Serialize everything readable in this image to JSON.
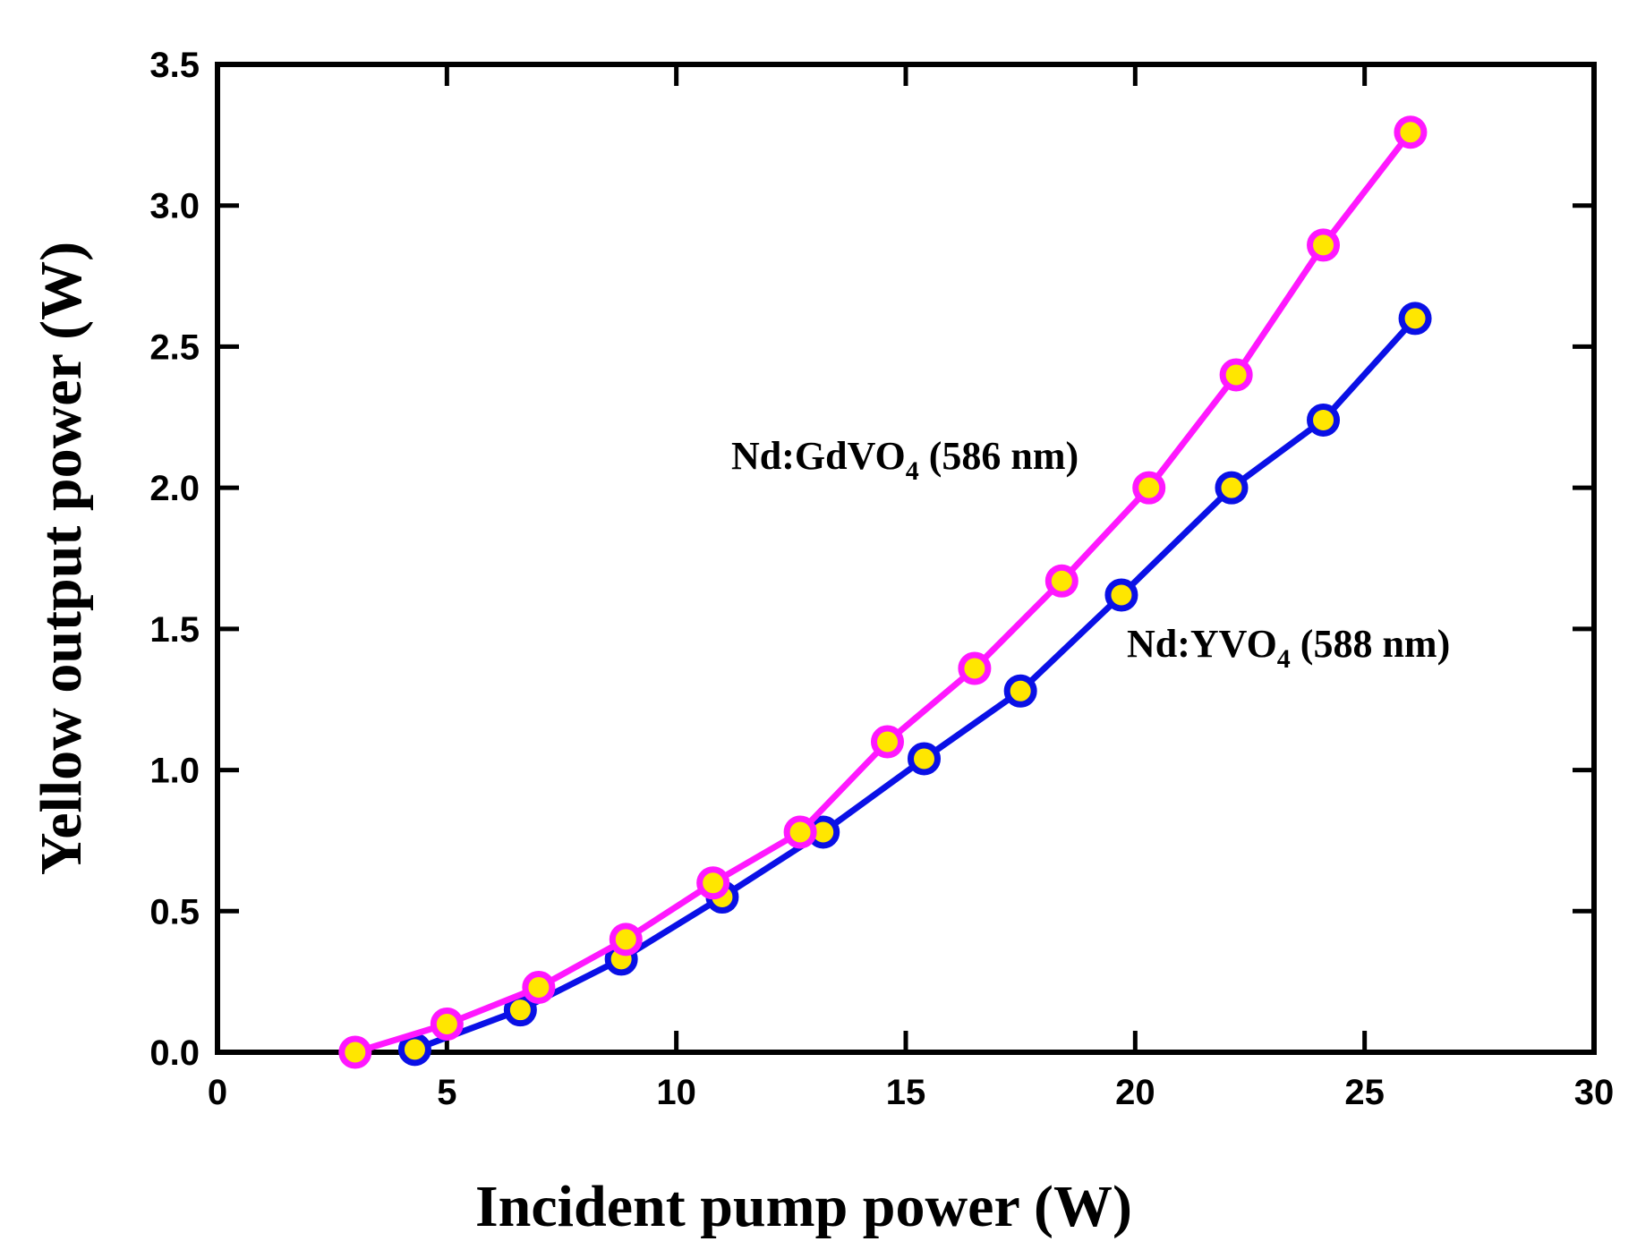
{
  "chart_data": {
    "type": "line",
    "xlabel": "Incident pump power (W)",
    "ylabel": "Yellow output power (W)",
    "xlim": [
      0,
      30
    ],
    "ylim": [
      0,
      3.5
    ],
    "x_ticks": [
      "0",
      "5",
      "10",
      "15",
      "20",
      "25",
      "30"
    ],
    "y_ticks": [
      "0.0",
      "0.5",
      "1.0",
      "1.5",
      "2.0",
      "2.5",
      "3.0",
      "3.5"
    ],
    "marker_fill": "#ffe600",
    "series": [
      {
        "name": "Nd:YVO4 (588 nm)",
        "label_main": "Nd:YVO",
        "label_sub": "4",
        "label_tail": " (588 nm)",
        "color": "#0a10e6",
        "x": [
          4.3,
          6.6,
          8.8,
          11.0,
          13.2,
          15.4,
          17.5,
          19.7,
          22.1,
          24.1,
          26.1
        ],
        "y": [
          0.01,
          0.15,
          0.33,
          0.55,
          0.78,
          1.04,
          1.28,
          1.62,
          2.0,
          2.24,
          2.6
        ]
      },
      {
        "name": "Nd:GdVO4 (586 nm)",
        "label_main": "Nd:GdVO",
        "label_sub": "4",
        "label_tail": " (586 nm)",
        "color": "#ff18ff",
        "x": [
          3.0,
          5.0,
          7.0,
          8.9,
          10.8,
          12.7,
          14.6,
          16.5,
          18.4,
          20.3,
          22.2,
          24.1,
          26.0
        ],
        "y": [
          0.0,
          0.1,
          0.23,
          0.4,
          0.6,
          0.78,
          1.1,
          1.36,
          1.67,
          2.0,
          2.4,
          2.86,
          3.26
        ]
      }
    ]
  }
}
